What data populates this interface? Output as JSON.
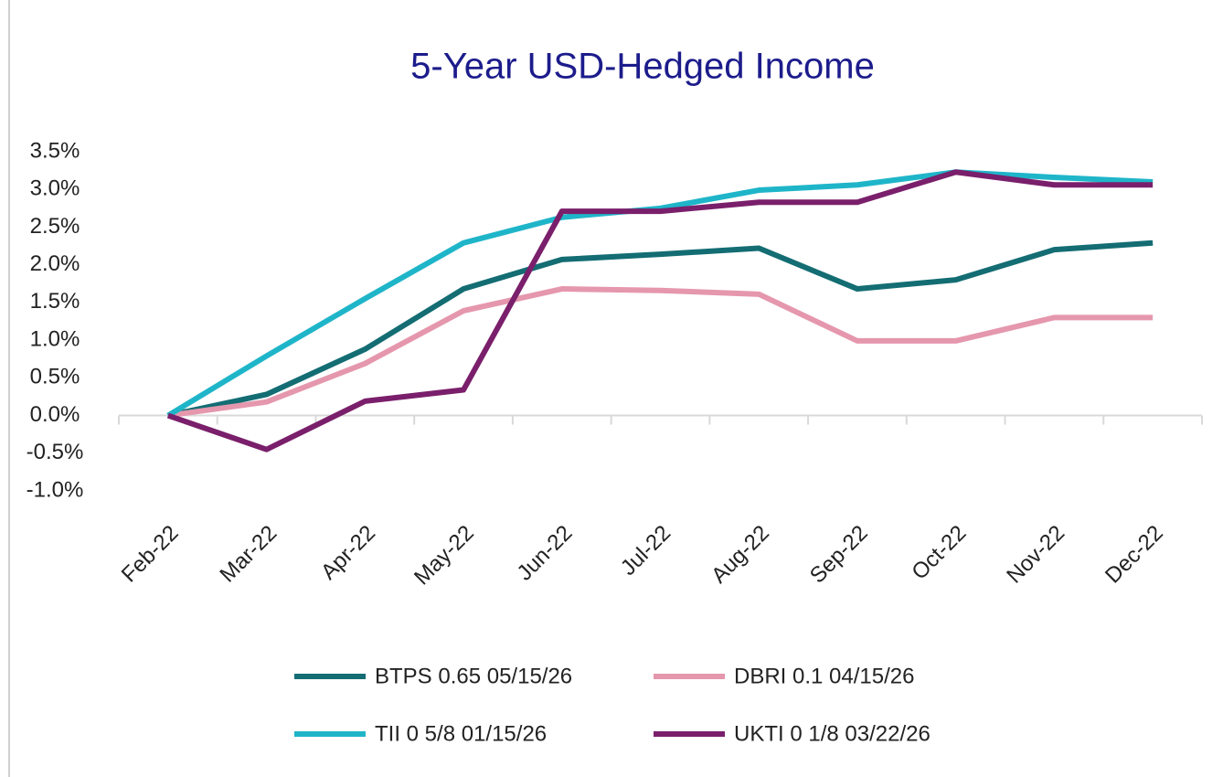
{
  "chart_data": {
    "type": "line",
    "title": "5-Year USD-Hedged Income",
    "categories": [
      "Feb-22",
      "Mar-22",
      "Apr-22",
      "May-22",
      "Jun-22",
      "Jul-22",
      "Aug-22",
      "Sep-22",
      "Oct-22",
      "Nov-22",
      "Dec-22"
    ],
    "series": [
      {
        "name": "BTPS 0.65 05/15/26",
        "color": "#136d73",
        "values": [
          0,
          0.28,
          0.88,
          1.68,
          2.07,
          2.14,
          2.22,
          1.68,
          1.8,
          2.2,
          2.29
        ]
      },
      {
        "name": "DBRI 0.1 04/15/26",
        "color": "#e597ad",
        "values": [
          0,
          0.18,
          0.69,
          1.39,
          1.68,
          1.66,
          1.61,
          0.99,
          0.99,
          1.3,
          1.3
        ]
      },
      {
        "name": "TII 0 5/8 01/15/26",
        "color": "#1fb5c9",
        "values": [
          0,
          0.79,
          1.55,
          2.29,
          2.63,
          2.75,
          2.99,
          3.06,
          3.23,
          3.16,
          3.1
        ]
      },
      {
        "name": "UKTI 0 1/8 03/22/26",
        "color": "#7a1f6b",
        "values": [
          0,
          -0.45,
          0.19,
          0.34,
          2.71,
          2.71,
          2.83,
          2.83,
          3.23,
          3.06,
          3.06
        ]
      }
    ],
    "ylim": [
      -1,
      3.5
    ],
    "yticks": [
      {
        "value": -1,
        "label": "-1.0%"
      },
      {
        "value": -0.5,
        "label": "-0.5%"
      },
      {
        "value": 0,
        "label": "0.0%"
      },
      {
        "value": 0.5,
        "label": "0.5%"
      },
      {
        "value": 1,
        "label": "1.0%"
      },
      {
        "value": 1.5,
        "label": "1.5%"
      },
      {
        "value": 2,
        "label": "2.0%"
      },
      {
        "value": 2.5,
        "label": "2.5%"
      },
      {
        "value": 3,
        "label": "3.0%"
      },
      {
        "value": 3.5,
        "label": "3.5%"
      }
    ],
    "grid": false,
    "legend": "bottom"
  }
}
